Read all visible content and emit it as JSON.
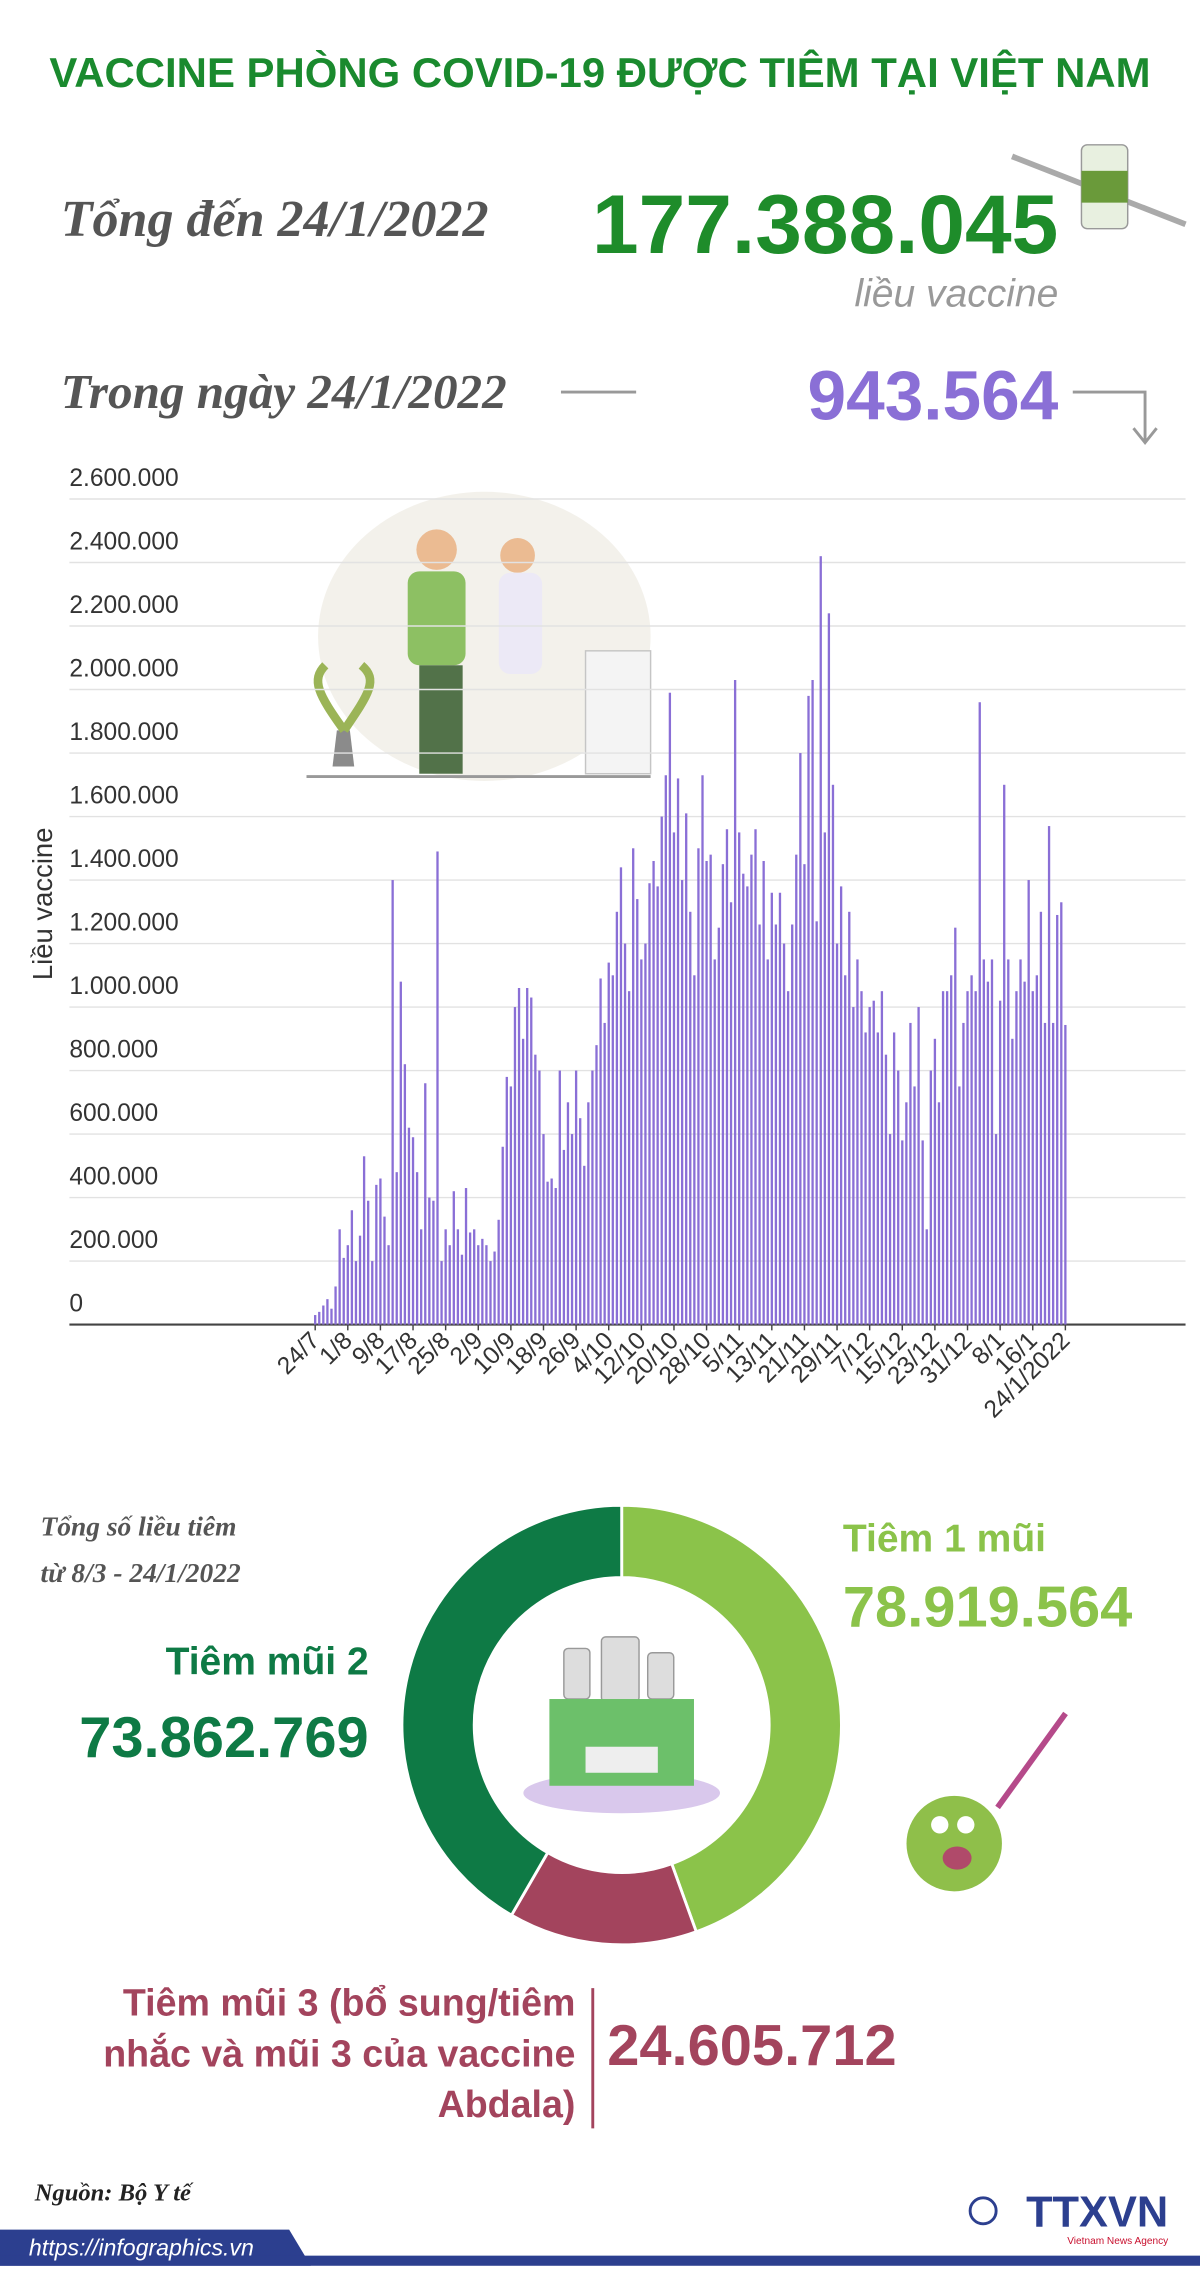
{
  "header": {
    "title": "VACCINE PHÒNG COVID-19 ĐƯỢC TIÊM TẠI VIỆT NAM",
    "total_label": "Tổng đến 24/1/2022",
    "total_value": "177.388.045",
    "total_unit": "liều vaccine",
    "day_label": "Trong ngày 24/1/2022",
    "day_value": "943.564"
  },
  "chart_data": [
    {
      "type": "bar",
      "y_label": "Liều vaccine",
      "color": "#8a6fd6",
      "grid": true,
      "ylim": [
        0,
        2600000
      ],
      "yticks": [
        0,
        {
          "value": 200000,
          "label": "200.000"
        },
        {
          "value": 400000,
          "label": "400.000"
        },
        {
          "value": 600000,
          "label": "600.000"
        },
        {
          "value": 800000,
          "label": "800.000"
        },
        {
          "value": 1000000,
          "label": "1.000.000"
        },
        {
          "value": 1200000,
          "label": "1.200.000"
        },
        {
          "value": 1400000,
          "label": "1.400.000"
        },
        {
          "value": 1600000,
          "label": "1.600.000"
        },
        {
          "value": 1800000,
          "label": "1.800.000"
        },
        {
          "value": 2000000,
          "label": "2.000.000"
        },
        {
          "value": 2200000,
          "label": "2.200.000"
        },
        {
          "value": 2400000,
          "label": "2.400.000"
        },
        {
          "value": 2600000,
          "label": "2.600.000"
        }
      ],
      "categories": [
        "24/7",
        null,
        null,
        null,
        null,
        null,
        null,
        null,
        "1/8",
        null,
        null,
        null,
        null,
        null,
        null,
        null,
        "9/8",
        null,
        null,
        null,
        null,
        null,
        null,
        null,
        "17/8",
        null,
        null,
        null,
        null,
        null,
        null,
        null,
        "25/8",
        null,
        null,
        null,
        null,
        null,
        null,
        null,
        "2/9",
        null,
        null,
        null,
        null,
        null,
        null,
        null,
        "10/9",
        null,
        null,
        null,
        null,
        null,
        null,
        null,
        "18/9",
        null,
        null,
        null,
        null,
        null,
        null,
        null,
        "26/9",
        null,
        null,
        null,
        null,
        null,
        null,
        null,
        "4/10",
        null,
        null,
        null,
        null,
        null,
        null,
        null,
        "12/10",
        null,
        null,
        null,
        null,
        null,
        null,
        null,
        "20/10",
        null,
        null,
        null,
        null,
        null,
        null,
        null,
        "28/10",
        null,
        null,
        null,
        null,
        null,
        null,
        null,
        "5/11",
        null,
        null,
        null,
        null,
        null,
        null,
        null,
        "13/11",
        null,
        null,
        null,
        null,
        null,
        null,
        null,
        "21/11",
        null,
        null,
        null,
        null,
        null,
        null,
        null,
        "29/11",
        null,
        null,
        null,
        null,
        null,
        null,
        null,
        "7/12",
        null,
        null,
        null,
        null,
        null,
        null,
        null,
        "15/12",
        null,
        null,
        null,
        null,
        null,
        null,
        null,
        "23/12",
        null,
        null,
        null,
        null,
        null,
        null,
        null,
        "31/12",
        null,
        null,
        null,
        null,
        null,
        null,
        null,
        "8/1",
        null,
        null,
        null,
        null,
        null,
        null,
        null,
        "16/1",
        null,
        null,
        null,
        null,
        null,
        null,
        null,
        "24/1/2022"
      ],
      "values": [
        30000,
        40000,
        60000,
        80000,
        50000,
        120000,
        300000,
        210000,
        250000,
        360000,
        200000,
        280000,
        530000,
        390000,
        200000,
        440000,
        460000,
        340000,
        250000,
        1400000,
        480000,
        1080000,
        820000,
        620000,
        590000,
        480000,
        300000,
        760000,
        400000,
        390000,
        1490000,
        200000,
        300000,
        250000,
        420000,
        300000,
        220000,
        430000,
        290000,
        300000,
        250000,
        270000,
        250000,
        200000,
        230000,
        330000,
        560000,
        780000,
        750000,
        1000000,
        1060000,
        900000,
        1060000,
        1030000,
        850000,
        800000,
        600000,
        450000,
        460000,
        430000,
        800000,
        550000,
        700000,
        600000,
        800000,
        650000,
        500000,
        700000,
        800000,
        880000,
        1090000,
        950000,
        1140000,
        1100000,
        1300000,
        1440000,
        1200000,
        1050000,
        1500000,
        1340000,
        1150000,
        1200000,
        1390000,
        1460000,
        1380000,
        1600000,
        1730000,
        1990000,
        1550000,
        1720000,
        1400000,
        1610000,
        1300000,
        1100000,
        1500000,
        1730000,
        1460000,
        1480000,
        1150000,
        1250000,
        1450000,
        1560000,
        1330000,
        2030000,
        1550000,
        1420000,
        1380000,
        1480000,
        1560000,
        1260000,
        1460000,
        1150000,
        1360000,
        1260000,
        1360000,
        1200000,
        1050000,
        1260000,
        1480000,
        1800000,
        1450000,
        1980000,
        2030000,
        1270000,
        2420000,
        1550000,
        2240000,
        1700000,
        1200000,
        1380000,
        1100000,
        1300000,
        1000000,
        1150000,
        1050000,
        920000,
        1000000,
        1020000,
        920000,
        1050000,
        850000,
        600000,
        920000,
        800000,
        580000,
        700000,
        950000,
        750000,
        1000000,
        580000,
        300000,
        800000,
        900000,
        700000,
        1050000,
        1050000,
        1100000,
        1250000,
        750000,
        950000,
        1050000,
        1100000,
        1050000,
        1960000,
        1150000,
        1080000,
        1150000,
        600000,
        1020000,
        1700000,
        1150000,
        900000,
        1050000,
        1150000,
        1080000,
        1400000,
        1050000,
        1100000,
        1300000,
        950000,
        1570000,
        950000,
        1290000,
        1330000,
        943564
      ]
    },
    {
      "type": "pie",
      "caption": [
        "Tổng số liều tiêm",
        "từ 8/3 - 24/1/2022"
      ],
      "categories": [
        "Tiêm 1 mũi",
        "Tiêm mũi 3 (bổ sung/tiêm nhắc và mũi 3 của vaccine Abdala)",
        "Tiêm mũi 2"
      ],
      "values": [
        78919564,
        24605712,
        73862769
      ],
      "value_labels": [
        "78.919.564",
        "24.605.712",
        "73.862.769"
      ],
      "colors": [
        "#8bc34a",
        "#a3445d",
        "#0e7a45"
      ]
    }
  ],
  "footer": {
    "source": "Nguồn: Bộ Y tế",
    "url": "https://infographics.vn",
    "brand": "TTXVN",
    "brand_sub": "Vietnam News Agency"
  }
}
